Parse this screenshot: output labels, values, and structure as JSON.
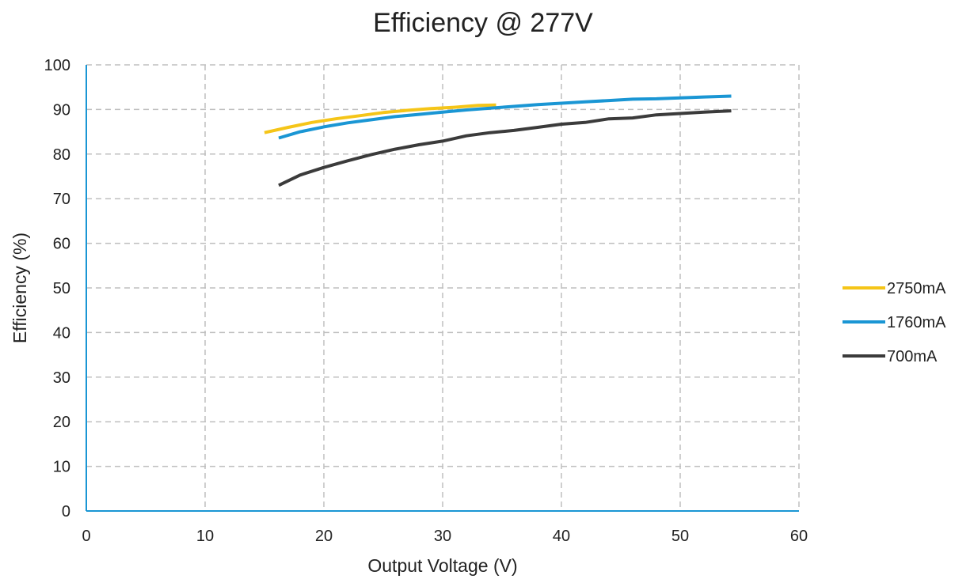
{
  "chart_data": {
    "type": "line",
    "title": "Efficiency @ 277V",
    "xlabel": "Output Voltage (V)",
    "ylabel": "Efficiency (%)",
    "xlim": [
      0,
      60
    ],
    "ylim": [
      0,
      100
    ],
    "xticks": [
      0,
      10,
      20,
      30,
      40,
      50,
      60
    ],
    "yticks": [
      0,
      10,
      20,
      30,
      40,
      50,
      60,
      70,
      80,
      90,
      100
    ],
    "grid": true,
    "legend_position": "right",
    "axis_color": "#1a96d4",
    "grid_color": "#bfbfbf",
    "series": [
      {
        "name": "2750mA",
        "color": "#f5c518",
        "x": [
          15,
          17,
          19,
          21,
          23,
          25,
          27,
          29,
          31,
          33,
          34.5
        ],
        "y": [
          84.8,
          86.0,
          87.1,
          87.9,
          88.6,
          89.3,
          89.8,
          90.2,
          90.5,
          90.9,
          91.0
        ]
      },
      {
        "name": "1760mA",
        "color": "#1a96d4",
        "x": [
          16.2,
          18,
          20,
          22,
          24,
          26,
          28,
          30,
          32,
          34,
          36,
          38,
          40,
          42,
          44,
          46,
          48,
          50,
          52,
          54.3
        ],
        "y": [
          83.6,
          85.0,
          86.1,
          87.0,
          87.7,
          88.4,
          88.9,
          89.4,
          89.9,
          90.3,
          90.7,
          91.1,
          91.4,
          91.7,
          92.0,
          92.3,
          92.4,
          92.6,
          92.8,
          93.0
        ]
      },
      {
        "name": "700mA",
        "color": "#3b3b3b",
        "x": [
          16.2,
          18,
          20,
          22,
          24,
          26,
          28,
          30,
          32,
          34,
          36,
          38,
          40,
          42,
          44,
          46,
          48,
          50,
          52,
          54.3
        ],
        "y": [
          73.0,
          75.3,
          77.0,
          78.5,
          79.9,
          81.1,
          82.1,
          82.9,
          84.1,
          84.8,
          85.3,
          86.0,
          86.7,
          87.1,
          87.9,
          88.1,
          88.8,
          89.1,
          89.4,
          89.7
        ]
      }
    ]
  }
}
